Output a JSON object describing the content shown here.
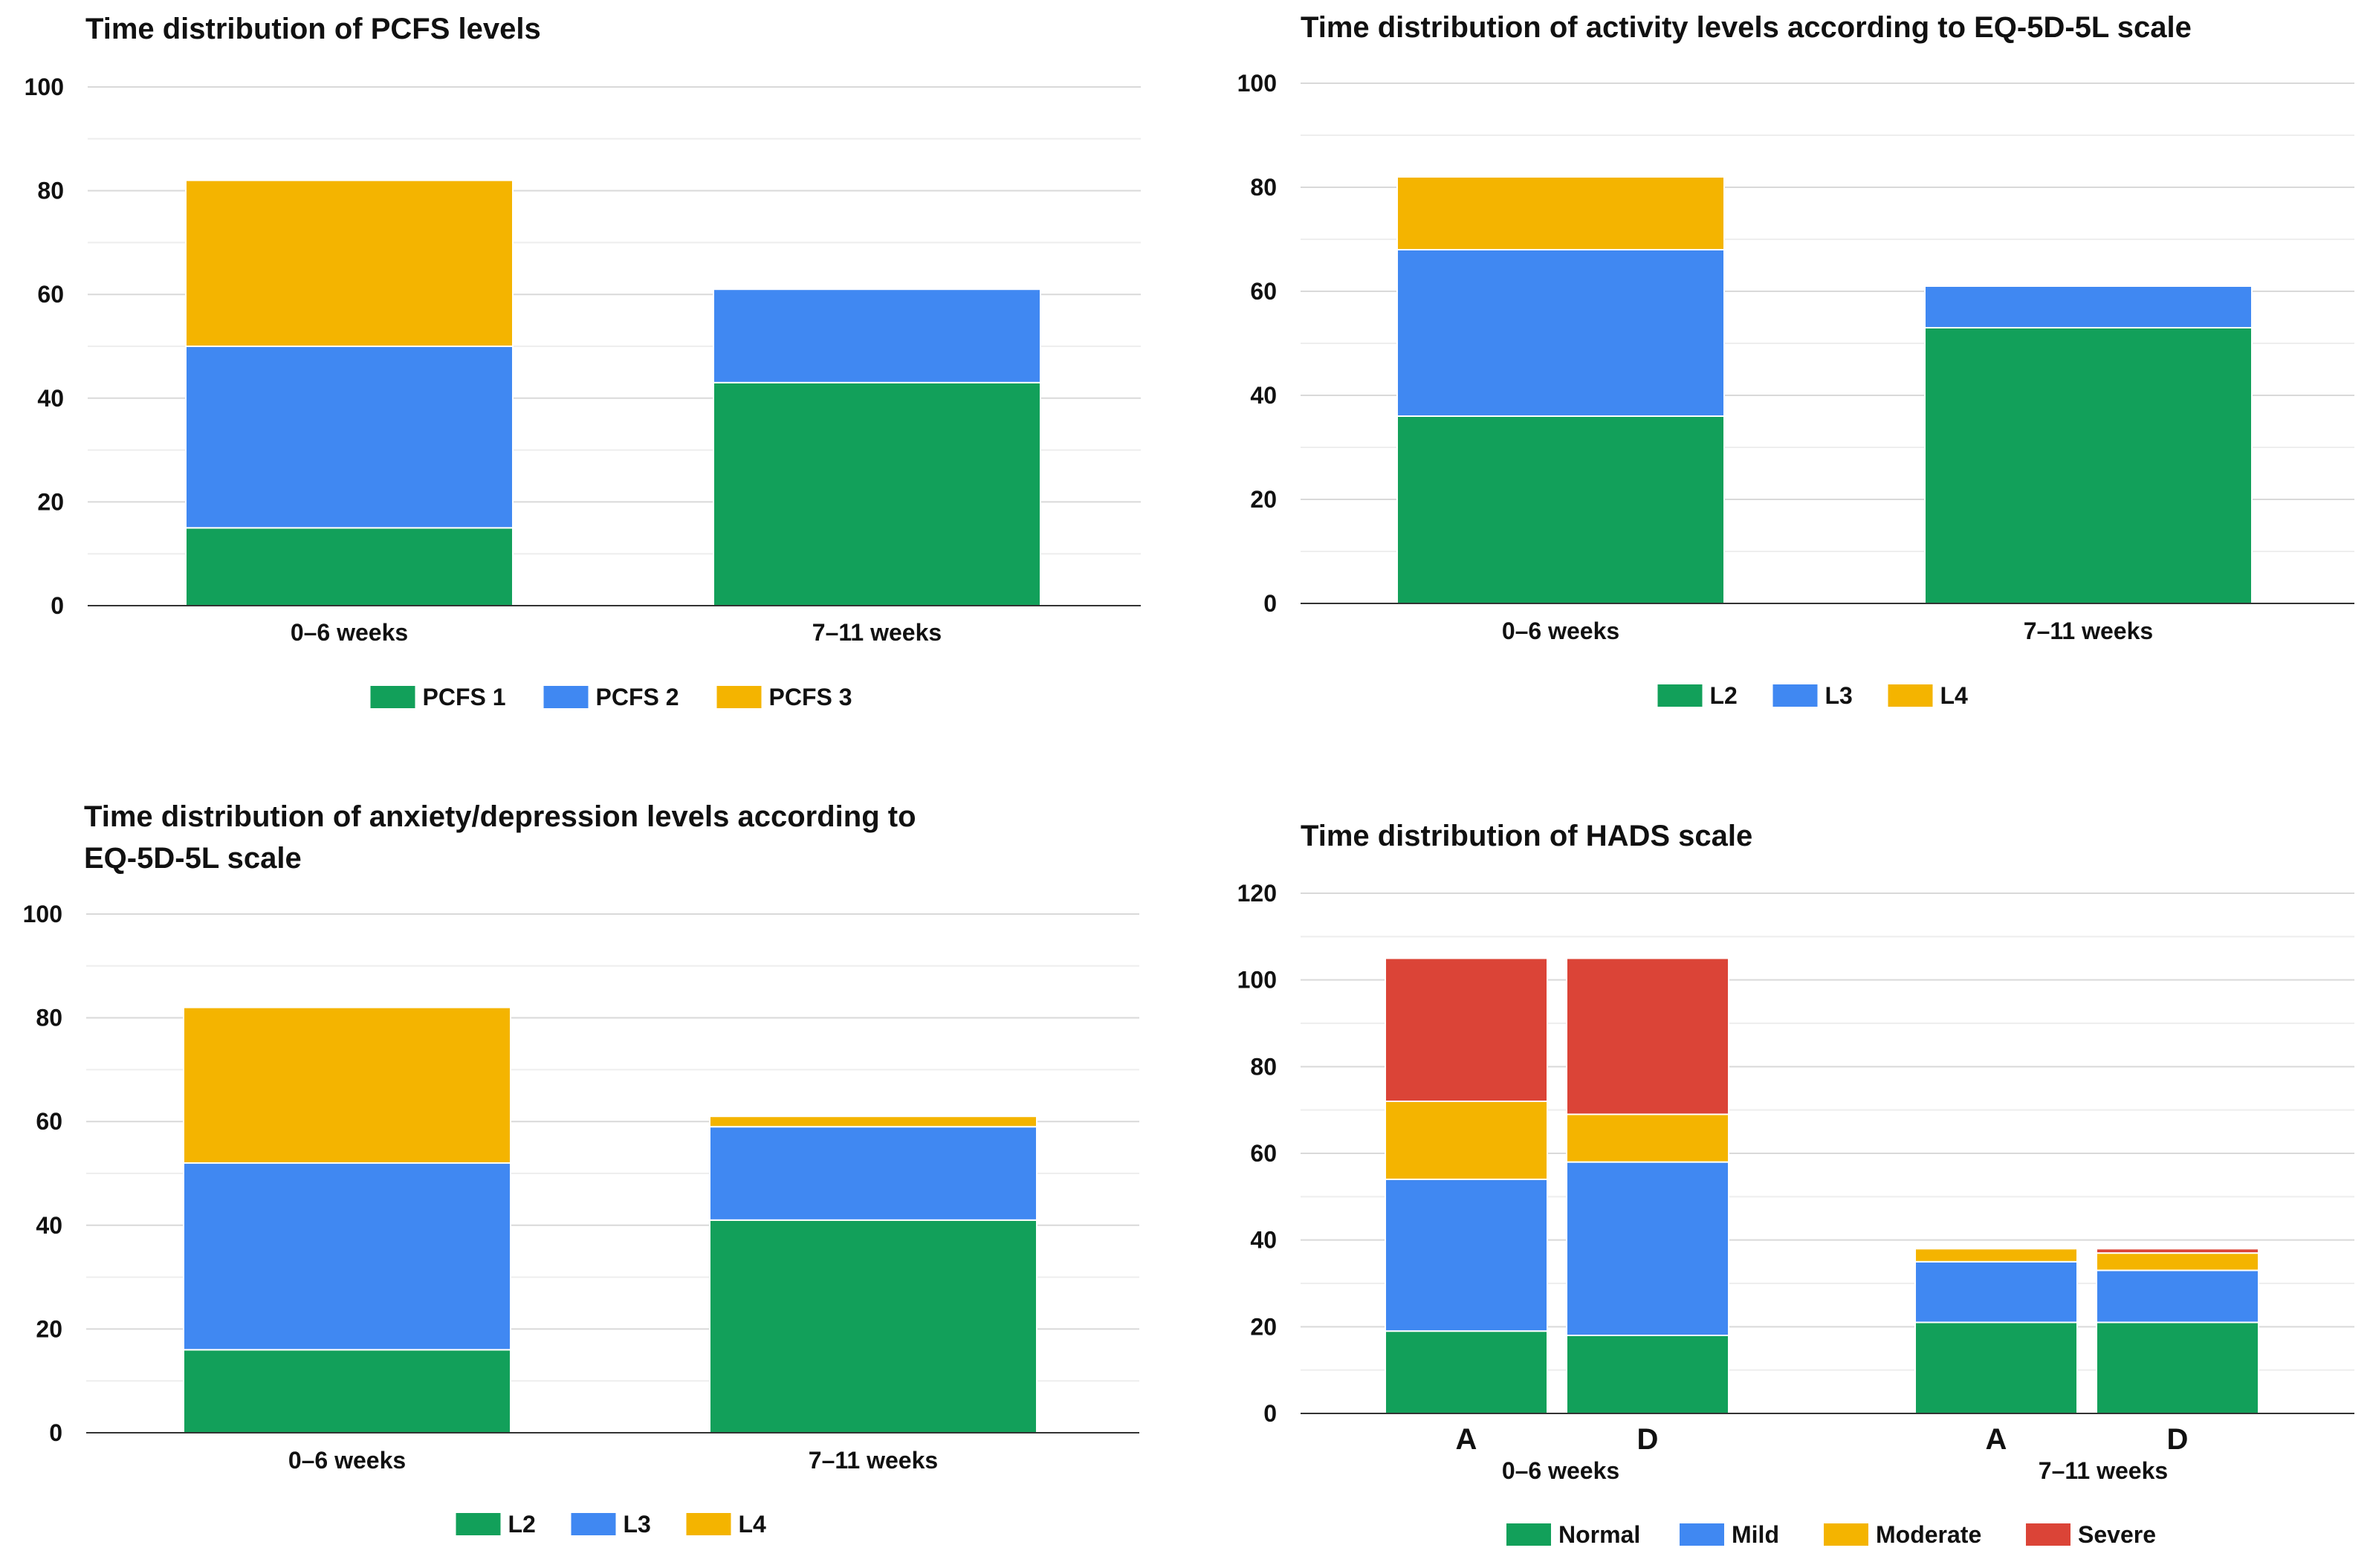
{
  "colors": {
    "green": "#12a05a",
    "blue": "#4088f2",
    "yellow": "#f4b400",
    "red": "#db4437",
    "grid_major": "#d9d9d9",
    "grid_minor": "#eeeeee",
    "axis": "#333333"
  },
  "chart_data": [
    {
      "id": "pcfs",
      "type": "bar",
      "stacked": true,
      "title_lines": [
        "Time distribution of PCFS levels"
      ],
      "categories": [
        "0–6 weeks",
        "7–11 weeks"
      ],
      "ylim": [
        0,
        100
      ],
      "yticks": [
        0,
        20,
        40,
        60,
        80,
        100
      ],
      "series": [
        {
          "name": "PCFS 1",
          "color": "green",
          "values": [
            15,
            43
          ]
        },
        {
          "name": "PCFS 2",
          "color": "blue",
          "values": [
            35,
            18
          ]
        },
        {
          "name": "PCFS 3",
          "color": "yellow",
          "values": [
            32,
            0
          ]
        }
      ],
      "legend_position": "bottom"
    },
    {
      "id": "activity",
      "type": "bar",
      "stacked": true,
      "title_lines": [
        "Time distribution of activity levels according to EQ-5D-5L scale"
      ],
      "categories": [
        "0–6 weeks",
        "7–11 weeks"
      ],
      "ylim": [
        0,
        100
      ],
      "yticks": [
        0,
        20,
        40,
        60,
        80,
        100
      ],
      "series": [
        {
          "name": "L2",
          "color": "green",
          "values": [
            36,
            53
          ]
        },
        {
          "name": "L3",
          "color": "blue",
          "values": [
            32,
            8
          ]
        },
        {
          "name": "L4",
          "color": "yellow",
          "values": [
            14,
            0
          ]
        }
      ],
      "legend_position": "bottom"
    },
    {
      "id": "anxiety",
      "type": "bar",
      "stacked": true,
      "title_lines": [
        "Time distribution of anxiety/depression levels according to",
        "EQ-5D-5L scale"
      ],
      "categories": [
        "0–6 weeks",
        "7–11 weeks"
      ],
      "ylim": [
        0,
        100
      ],
      "yticks": [
        0,
        20,
        40,
        60,
        80,
        100
      ],
      "series": [
        {
          "name": "L2",
          "color": "green",
          "values": [
            16,
            41
          ]
        },
        {
          "name": "L3",
          "color": "blue",
          "values": [
            36,
            18
          ]
        },
        {
          "name": "L4",
          "color": "yellow",
          "values": [
            30,
            2
          ]
        }
      ],
      "legend_position": "bottom"
    },
    {
      "id": "hads",
      "type": "bar",
      "stacked": true,
      "title_lines": [
        "Time distribution of HADS scale"
      ],
      "groups": [
        "0–6 weeks",
        "7–11 weeks"
      ],
      "subcategories": [
        "A",
        "D",
        "A",
        "D"
      ],
      "ylim": [
        0,
        120
      ],
      "yticks": [
        0,
        20,
        40,
        60,
        80,
        100,
        120
      ],
      "series": [
        {
          "name": "Normal",
          "color": "green",
          "values": [
            19,
            18,
            21,
            21
          ]
        },
        {
          "name": "Mild",
          "color": "blue",
          "values": [
            35,
            40,
            14,
            12
          ]
        },
        {
          "name": "Moderate",
          "color": "yellow",
          "values": [
            18,
            11,
            3,
            4
          ]
        },
        {
          "name": "Severe",
          "color": "red",
          "values": [
            33,
            36,
            0,
            1
          ]
        }
      ],
      "legend_position": "bottom"
    }
  ]
}
